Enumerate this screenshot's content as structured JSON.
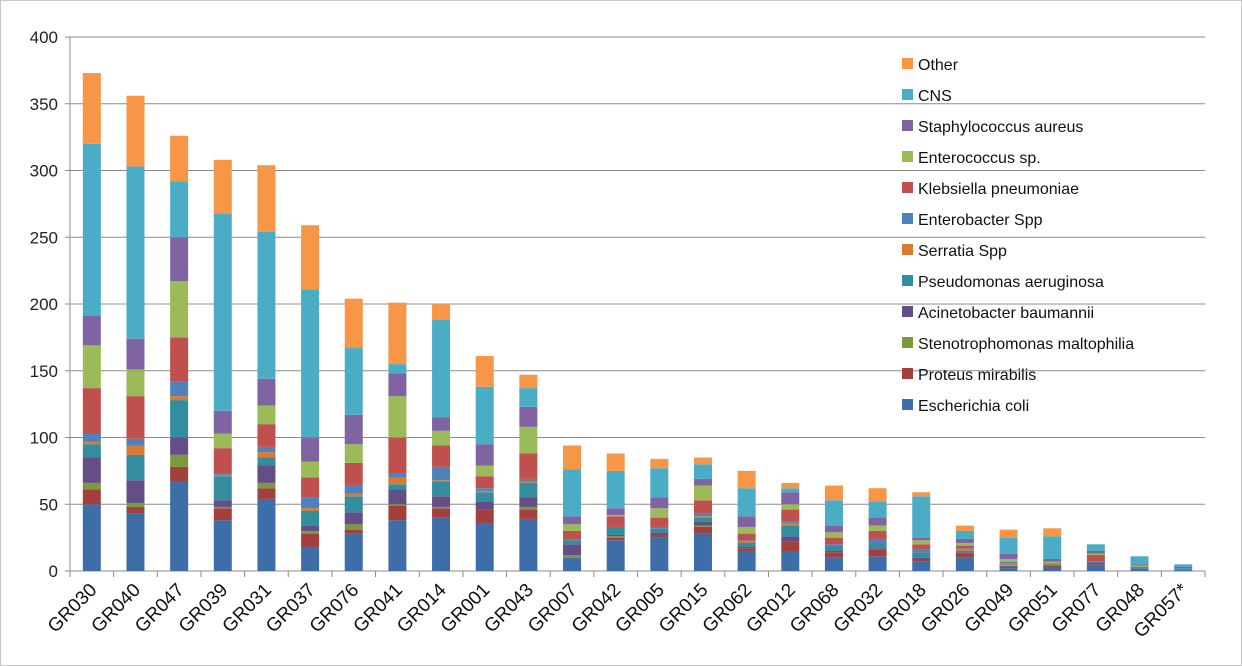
{
  "chart_data": {
    "type": "bar",
    "stacked": true,
    "title": "",
    "xlabel": "",
    "ylabel": "",
    "ylim": [
      0,
      400
    ],
    "yticks": [
      0,
      50,
      100,
      150,
      200,
      250,
      300,
      350,
      400
    ],
    "grid": true,
    "legend_position": "right",
    "categories": [
      "GR030",
      "GR040",
      "GR047",
      "GR039",
      "GR031",
      "GR037",
      "GR076",
      "GR041",
      "GR014",
      "GR001",
      "GR043",
      "GR007",
      "GR042",
      "GR005",
      "GR015",
      "GR062",
      "GR012",
      "GR068",
      "GR032",
      "GR018",
      "GR026",
      "GR049",
      "GR051",
      "GR077",
      "GR048",
      "GR057*"
    ],
    "series": [
      {
        "name": "Escherichia coli",
        "color": "#3e6ea8",
        "values": [
          50,
          43,
          67,
          38,
          54,
          18,
          28,
          38,
          40,
          36,
          39,
          10,
          23,
          25,
          28,
          15,
          15,
          10,
          11,
          7,
          10,
          2,
          3,
          4,
          2,
          1
        ]
      },
      {
        "name": "Proteus mirabilis",
        "color": "#a3403e",
        "values": [
          11,
          5,
          11,
          9,
          8,
          10,
          3,
          11,
          7,
          10,
          7,
          0,
          2,
          2,
          5,
          2,
          7,
          4,
          5,
          2,
          3,
          1,
          1,
          1,
          0,
          0
        ]
      },
      {
        "name": "Stenotrophomonas maltophilia",
        "color": "#7a9a3c",
        "values": [
          5,
          3,
          9,
          1,
          4,
          2,
          4,
          1,
          1,
          0,
          2,
          2,
          1,
          0,
          1,
          0,
          0,
          0,
          0,
          0,
          0,
          0,
          0,
          0,
          0,
          0
        ]
      },
      {
        "name": "Acinetobacter baumannii",
        "color": "#634e86",
        "values": [
          19,
          17,
          13,
          5,
          13,
          4,
          9,
          11,
          8,
          6,
          7,
          8,
          1,
          2,
          3,
          1,
          4,
          1,
          1,
          1,
          1,
          0,
          0,
          1,
          0,
          0
        ]
      },
      {
        "name": "Pseudomonas aeruginosa",
        "color": "#338d9f",
        "values": [
          10,
          19,
          28,
          18,
          6,
          11,
          12,
          4,
          11,
          7,
          11,
          3,
          6,
          3,
          3,
          3,
          8,
          3,
          4,
          4,
          1,
          1,
          1,
          0,
          0,
          0
        ]
      },
      {
        "name": "Serratia Spp",
        "color": "#d87a32",
        "values": [
          2,
          7,
          3,
          1,
          4,
          2,
          2,
          5,
          1,
          1,
          1,
          0,
          0,
          0,
          1,
          1,
          2,
          0,
          0,
          0,
          1,
          2,
          1,
          0,
          0,
          0
        ]
      },
      {
        "name": "Enterobacter Spp",
        "color": "#4f82bd",
        "values": [
          6,
          5,
          11,
          1,
          4,
          8,
          6,
          3,
          10,
          2,
          2,
          1,
          0,
          1,
          2,
          1,
          1,
          2,
          3,
          2,
          1,
          1,
          0,
          1,
          1,
          1
        ]
      },
      {
        "name": "Klebsiella pneumoniae",
        "color": "#c0504d",
        "values": [
          34,
          32,
          33,
          19,
          17,
          15,
          17,
          27,
          16,
          9,
          19,
          6,
          8,
          7,
          10,
          5,
          9,
          5,
          6,
          4,
          2,
          0,
          0,
          5,
          0,
          0
        ]
      },
      {
        "name": "Enterococcus sp.",
        "color": "#9bbb59",
        "values": [
          32,
          20,
          42,
          11,
          14,
          12,
          14,
          31,
          11,
          8,
          20,
          5,
          1,
          7,
          11,
          5,
          4,
          4,
          4,
          3,
          2,
          2,
          1,
          1,
          1,
          0
        ]
      },
      {
        "name": "Staphylococcus aureus",
        "color": "#8064a2",
        "values": [
          22,
          23,
          33,
          17,
          20,
          18,
          22,
          17,
          10,
          16,
          15,
          6,
          5,
          8,
          5,
          8,
          9,
          5,
          6,
          2,
          3,
          4,
          2,
          2,
          1,
          1
        ]
      },
      {
        "name": "CNS",
        "color": "#4bacc6",
        "values": [
          129,
          129,
          42,
          148,
          110,
          111,
          50,
          7,
          73,
          43,
          14,
          35,
          28,
          22,
          11,
          21,
          3,
          19,
          12,
          31,
          6,
          12,
          17,
          5,
          6,
          2
        ]
      },
      {
        "name": "Other",
        "color": "#f79646",
        "values": [
          53,
          53,
          34,
          40,
          50,
          48,
          37,
          46,
          12,
          23,
          10,
          18,
          13,
          7,
          5,
          13,
          4,
          11,
          10,
          3,
          4,
          6,
          6,
          0,
          0,
          0
        ]
      }
    ]
  }
}
